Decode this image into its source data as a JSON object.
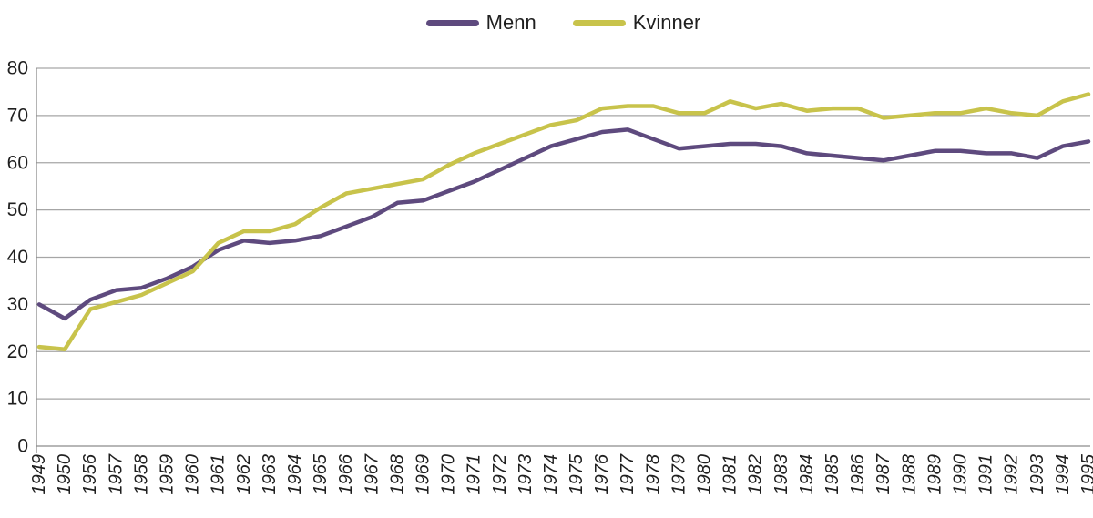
{
  "colors": {
    "background": "#ffffff",
    "gridline": "#a6a6a6",
    "axis": "#8c8c8c",
    "text": "#1f1f1f",
    "menn_line": "#5e4a7e",
    "kvinner_line": "#c8c34b"
  },
  "legend": {
    "position": "top-center",
    "items": [
      {
        "label": "Menn",
        "color": "#5e4a7e"
      },
      {
        "label": "Kvinner",
        "color": "#c8c34b"
      }
    ]
  },
  "chart_data": {
    "type": "line",
    "title": "",
    "xlabel": "",
    "ylabel": "",
    "grid": "horizontal",
    "legend_position": "top-center",
    "ylim": [
      0,
      80
    ],
    "yticks": [
      0,
      10,
      20,
      30,
      40,
      50,
      60,
      70,
      80
    ],
    "categories": [
      "1949",
      "1950",
      "1956",
      "1957",
      "1958",
      "1959",
      "1960",
      "1961",
      "1962",
      "1963",
      "1964",
      "1965",
      "1966",
      "1967",
      "1968",
      "1969",
      "1970",
      "1971",
      "1972",
      "1973",
      "1974",
      "1975",
      "1976",
      "1977",
      "1978",
      "1979",
      "1980",
      "1981",
      "1982",
      "1983",
      "1984",
      "1985",
      "1986",
      "1987",
      "1988",
      "1989",
      "1990",
      "1991",
      "1992",
      "1993",
      "1994",
      "1995"
    ],
    "series": [
      {
        "name": "Menn",
        "color": "#5e4a7e",
        "values": [
          30,
          27,
          31,
          33,
          33.5,
          35.5,
          38,
          41.5,
          43.5,
          43,
          43.5,
          44.5,
          46.5,
          48.5,
          51.5,
          52,
          54,
          56,
          58.5,
          61,
          63.5,
          65,
          66.5,
          67,
          65,
          63,
          63.5,
          64,
          64,
          63.5,
          62,
          61.5,
          61,
          60.5,
          61.5,
          62.5,
          62.5,
          62,
          62,
          61,
          63.5,
          64.5
        ]
      },
      {
        "name": "Kvinner",
        "color": "#c8c34b",
        "values": [
          21,
          20.5,
          29,
          30.5,
          32,
          34.5,
          37,
          43,
          45.5,
          45.5,
          47,
          50.5,
          53.5,
          54.5,
          55.5,
          56.5,
          59.5,
          62,
          64,
          66,
          68,
          69,
          71.5,
          72,
          72,
          70.5,
          70.5,
          73,
          71.5,
          72.5,
          71,
          71.5,
          71.5,
          69.5,
          70,
          70.5,
          70.5,
          71.5,
          70.5,
          70,
          73,
          74.5
        ]
      }
    ]
  }
}
